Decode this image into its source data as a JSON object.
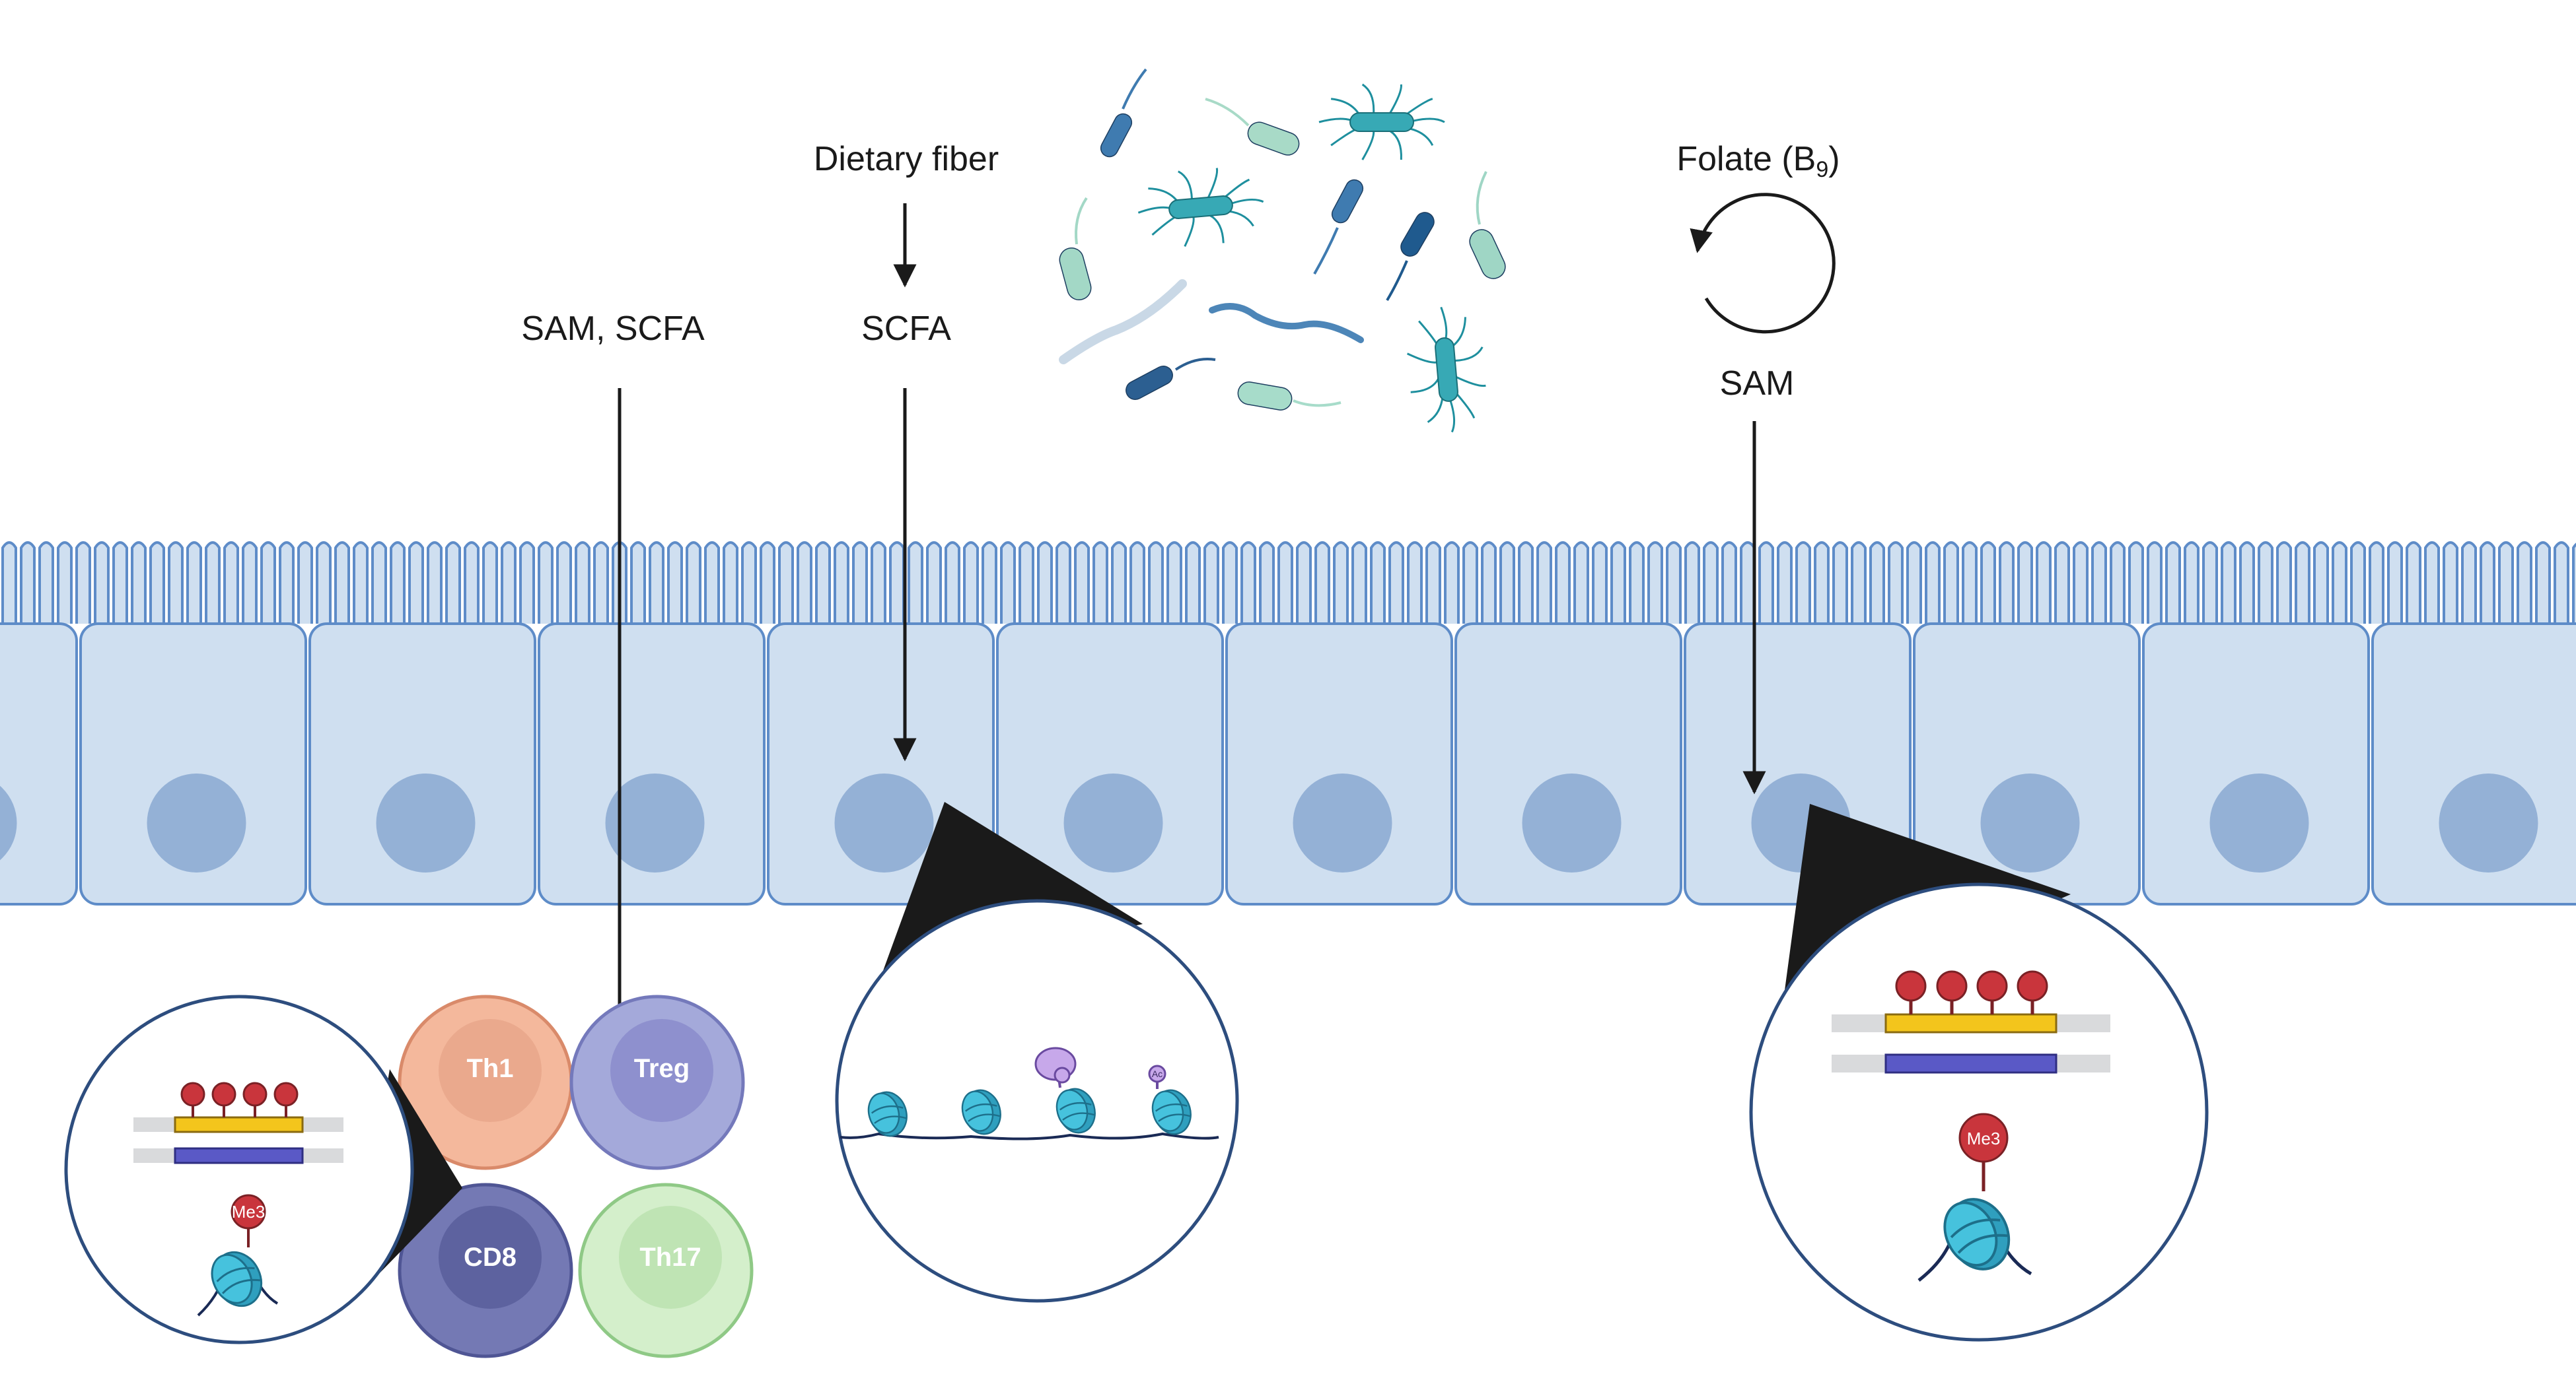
{
  "labels": {
    "dietary_fiber": "Dietary fiber",
    "scfa": "SCFA",
    "sam_scfa": "SAM, SCFA",
    "folate_prefix": "Folate (B",
    "folate_sub": "9",
    "folate_suffix": ")",
    "sam": "SAM"
  },
  "immune_cells": {
    "th1": "Th1",
    "treg": "Treg",
    "cd8": "CD8",
    "th17": "Th17"
  },
  "marks": {
    "me3": "Me3",
    "ac": "Ac"
  },
  "colors": {
    "epithelium_fill": "#cfdff0",
    "epithelium_stroke": "#5e8cc8",
    "nucleus": "#94b1d6",
    "magnifier_stroke": "#2d4d7e",
    "nucleosome": "#3fb7d3",
    "methyl_red": "#c9353c",
    "gene_yellow": "#f3c51c",
    "gene_blue": "#5a59c6",
    "th1": "#f4b89c",
    "treg": "#9fa4d8",
    "cd8": "#6e74b0",
    "th17": "#c9e9c0"
  }
}
